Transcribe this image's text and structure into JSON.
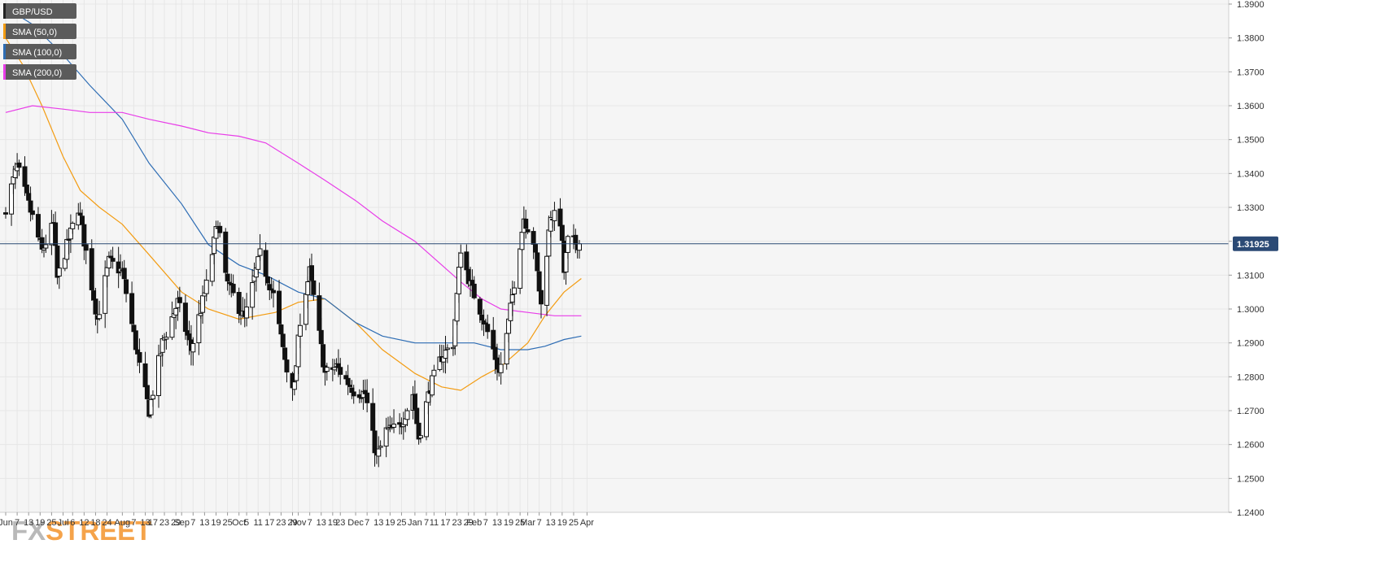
{
  "legend": [
    {
      "label": "GBP/USD",
      "color": "#222222"
    },
    {
      "label": "SMA (50,0)",
      "color": "#f39c12"
    },
    {
      "label": "SMA (100,0)",
      "color": "#2e6db4"
    },
    {
      "label": "SMA (200,0)",
      "color": "#e83de8"
    }
  ],
  "logo": {
    "part1": "FX",
    "part2": "STREET"
  },
  "price_tag": "1.31925",
  "colors": {
    "background": "#f5f5f5",
    "grid": "#e6e6e6",
    "bull_fill": "#ffffff",
    "bear_fill": "#111111",
    "wick": "#111111",
    "price_line": "#2b4a75",
    "legend_bg": "#5b5b5b"
  },
  "chart_data": {
    "type": "candlestick",
    "title": "",
    "xlabel": "",
    "ylabel": "",
    "ylim": [
      1.24,
      1.39
    ],
    "grid": true,
    "legend_position": "top-left",
    "current_price": 1.31925,
    "y_ticks": [
      "1.2400",
      "1.2500",
      "1.2600",
      "1.2700",
      "1.2800",
      "1.2900",
      "1.3000",
      "1.3100",
      "1.3200",
      "1.3300",
      "1.3400",
      "1.3500",
      "1.3600",
      "1.3700",
      "1.3800",
      "1.3900"
    ],
    "x_ticks": [
      "Jun",
      "7",
      "13",
      "19",
      "25",
      "Jul",
      "6",
      "12",
      "18",
      "24",
      "Aug",
      "7",
      "13",
      "17",
      "23",
      "29",
      "Sep",
      "7",
      "13",
      "19",
      "25",
      "Oct",
      "5",
      "11",
      "17",
      "23",
      "29",
      "Nov",
      "7",
      "13",
      "19",
      "23",
      "Dec",
      "7",
      "13",
      "19",
      "25",
      "Jan",
      "7",
      "11",
      "17",
      "23",
      "29",
      "Feb",
      "7",
      "13",
      "19",
      "25",
      "Mar",
      "7",
      "13",
      "19",
      "25",
      "Apr"
    ],
    "candle_anchors": [
      {
        "date": "2018-06-01",
        "close": 1.33
      },
      {
        "date": "2018-06-07",
        "close": 1.342
      },
      {
        "date": "2018-06-15",
        "close": 1.327
      },
      {
        "date": "2018-06-20",
        "close": 1.317
      },
      {
        "date": "2018-06-26",
        "close": 1.325
      },
      {
        "date": "2018-06-28",
        "close": 1.309
      },
      {
        "date": "2018-07-09",
        "close": 1.33
      },
      {
        "date": "2018-07-19",
        "close": 1.297
      },
      {
        "date": "2018-07-25",
        "close": 1.314
      },
      {
        "date": "2018-08-01",
        "close": 1.311
      },
      {
        "date": "2018-08-10",
        "close": 1.283
      },
      {
        "date": "2018-08-15",
        "close": 1.27
      },
      {
        "date": "2018-08-22",
        "close": 1.29
      },
      {
        "date": "2018-08-30",
        "close": 1.302
      },
      {
        "date": "2018-09-06",
        "close": 1.288
      },
      {
        "date": "2018-09-14",
        "close": 1.307
      },
      {
        "date": "2018-09-20",
        "close": 1.326
      },
      {
        "date": "2018-09-24",
        "close": 1.309
      },
      {
        "date": "2018-09-28",
        "close": 1.304
      },
      {
        "date": "2018-10-04",
        "close": 1.297
      },
      {
        "date": "2018-10-12",
        "close": 1.316
      },
      {
        "date": "2018-10-19",
        "close": 1.304
      },
      {
        "date": "2018-10-26",
        "close": 1.282
      },
      {
        "date": "2018-10-30",
        "close": 1.277
      },
      {
        "date": "2018-11-02",
        "close": 1.297
      },
      {
        "date": "2018-11-07",
        "close": 1.311
      },
      {
        "date": "2018-11-15",
        "close": 1.281
      },
      {
        "date": "2018-11-21",
        "close": 1.283
      },
      {
        "date": "2018-11-30",
        "close": 1.276
      },
      {
        "date": "2018-12-06",
        "close": 1.275
      },
      {
        "date": "2018-12-12",
        "close": 1.256
      },
      {
        "date": "2018-12-17",
        "close": 1.264
      },
      {
        "date": "2018-12-24",
        "close": 1.265
      },
      {
        "date": "2018-12-31",
        "close": 1.275
      },
      {
        "date": "2019-01-03",
        "close": 1.262
      },
      {
        "date": "2019-01-09",
        "close": 1.277
      },
      {
        "date": "2019-01-15",
        "close": 1.286
      },
      {
        "date": "2019-01-21",
        "close": 1.29
      },
      {
        "date": "2019-01-25",
        "close": 1.318
      },
      {
        "date": "2019-01-30",
        "close": 1.307
      },
      {
        "date": "2019-02-04",
        "close": 1.3
      },
      {
        "date": "2019-02-11",
        "close": 1.288
      },
      {
        "date": "2019-02-14",
        "close": 1.281
      },
      {
        "date": "2019-02-18",
        "close": 1.292
      },
      {
        "date": "2019-02-22",
        "close": 1.308
      },
      {
        "date": "2019-02-27",
        "close": 1.327
      },
      {
        "date": "2019-03-04",
        "close": 1.32
      },
      {
        "date": "2019-03-08",
        "close": 1.301
      },
      {
        "date": "2019-03-13",
        "close": 1.328
      },
      {
        "date": "2019-03-18",
        "close": 1.326
      },
      {
        "date": "2019-03-20",
        "close": 1.311
      },
      {
        "date": "2019-03-22",
        "close": 1.32
      },
      {
        "date": "2019-03-28",
        "close": 1.3193
      }
    ],
    "series": [
      {
        "name": "SMA (50,0)",
        "points": [
          [
            "2018-06-01",
            1.38
          ],
          [
            "2018-06-10",
            1.372
          ],
          [
            "2018-06-20",
            1.36
          ],
          [
            "2018-07-01",
            1.345
          ],
          [
            "2018-07-10",
            1.335
          ],
          [
            "2018-07-20",
            1.33
          ],
          [
            "2018-08-01",
            1.325
          ],
          [
            "2018-08-15",
            1.316
          ],
          [
            "2018-09-01",
            1.305
          ],
          [
            "2018-09-15",
            1.3
          ],
          [
            "2018-10-01",
            1.297
          ],
          [
            "2018-10-20",
            1.299
          ],
          [
            "2018-11-01",
            1.302
          ],
          [
            "2018-11-15",
            1.303
          ],
          [
            "2018-12-01",
            1.296
          ],
          [
            "2018-12-15",
            1.288
          ],
          [
            "2019-01-01",
            1.281
          ],
          [
            "2019-01-15",
            1.277
          ],
          [
            "2019-01-25",
            1.276
          ],
          [
            "2019-02-05",
            1.28
          ],
          [
            "2019-02-15",
            1.283
          ],
          [
            "2019-03-01",
            1.29
          ],
          [
            "2019-03-10",
            1.298
          ],
          [
            "2019-03-20",
            1.305
          ],
          [
            "2019-03-29",
            1.309
          ]
        ]
      },
      {
        "name": "SMA (100,0)",
        "points": [
          [
            "2018-06-01",
            1.389
          ],
          [
            "2018-06-15",
            1.384
          ],
          [
            "2018-07-01",
            1.375
          ],
          [
            "2018-07-15",
            1.366
          ],
          [
            "2018-08-01",
            1.356
          ],
          [
            "2018-08-15",
            1.343
          ],
          [
            "2018-09-01",
            1.331
          ],
          [
            "2018-09-15",
            1.319
          ],
          [
            "2018-10-01",
            1.313
          ],
          [
            "2018-10-15",
            1.31
          ],
          [
            "2018-11-01",
            1.305
          ],
          [
            "2018-11-15",
            1.303
          ],
          [
            "2018-12-01",
            1.296
          ],
          [
            "2018-12-15",
            1.292
          ],
          [
            "2019-01-01",
            1.29
          ],
          [
            "2019-01-15",
            1.29
          ],
          [
            "2019-02-01",
            1.29
          ],
          [
            "2019-02-15",
            1.288
          ],
          [
            "2019-03-01",
            1.288
          ],
          [
            "2019-03-10",
            1.289
          ],
          [
            "2019-03-20",
            1.291
          ],
          [
            "2019-03-29",
            1.292
          ]
        ]
      },
      {
        "name": "SMA (200,0)",
        "points": [
          [
            "2018-06-01",
            1.358
          ],
          [
            "2018-06-15",
            1.36
          ],
          [
            "2018-07-01",
            1.359
          ],
          [
            "2018-07-15",
            1.358
          ],
          [
            "2018-08-01",
            1.358
          ],
          [
            "2018-08-15",
            1.356
          ],
          [
            "2018-09-01",
            1.354
          ],
          [
            "2018-09-15",
            1.352
          ],
          [
            "2018-10-01",
            1.351
          ],
          [
            "2018-10-15",
            1.349
          ],
          [
            "2018-11-01",
            1.343
          ],
          [
            "2018-11-15",
            1.338
          ],
          [
            "2018-12-01",
            1.332
          ],
          [
            "2018-12-15",
            1.326
          ],
          [
            "2019-01-01",
            1.32
          ],
          [
            "2019-01-15",
            1.313
          ],
          [
            "2019-01-25",
            1.308
          ],
          [
            "2019-02-05",
            1.303
          ],
          [
            "2019-02-15",
            1.3
          ],
          [
            "2019-03-01",
            1.299
          ],
          [
            "2019-03-15",
            1.298
          ],
          [
            "2019-03-29",
            1.298
          ]
        ]
      }
    ]
  }
}
